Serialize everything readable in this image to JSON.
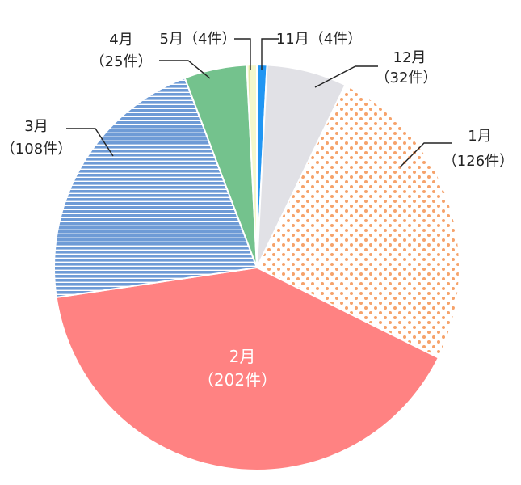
{
  "chart_data": {
    "type": "pie",
    "title": "",
    "unit": "件",
    "slices": [
      {
        "month": "11月",
        "count_label": "（4件）",
        "value": 4,
        "color": "#2196f3",
        "pattern": "solid"
      },
      {
        "month": "12月",
        "count_label": "（32件）",
        "value": 32,
        "color": "#e1e1e6",
        "pattern": "solid"
      },
      {
        "month": "1月",
        "count_label": "（126件）",
        "value": 126,
        "color": "#f6a26a",
        "pattern": "dots"
      },
      {
        "month": "2月",
        "count_label": "（202件）",
        "value": 202,
        "color": "#ff8282",
        "pattern": "solid"
      },
      {
        "month": "3月",
        "count_label": "（108件）",
        "value": 108,
        "color": "#6e9bd6",
        "pattern": "stripes"
      },
      {
        "month": "4月",
        "count_label": "（25件）",
        "value": 25,
        "color": "#74c28d",
        "pattern": "solid"
      },
      {
        "month": "5月",
        "count_label": "（4件）",
        "value": 4,
        "color": "#f5f8cc",
        "pattern": "solid"
      }
    ]
  }
}
